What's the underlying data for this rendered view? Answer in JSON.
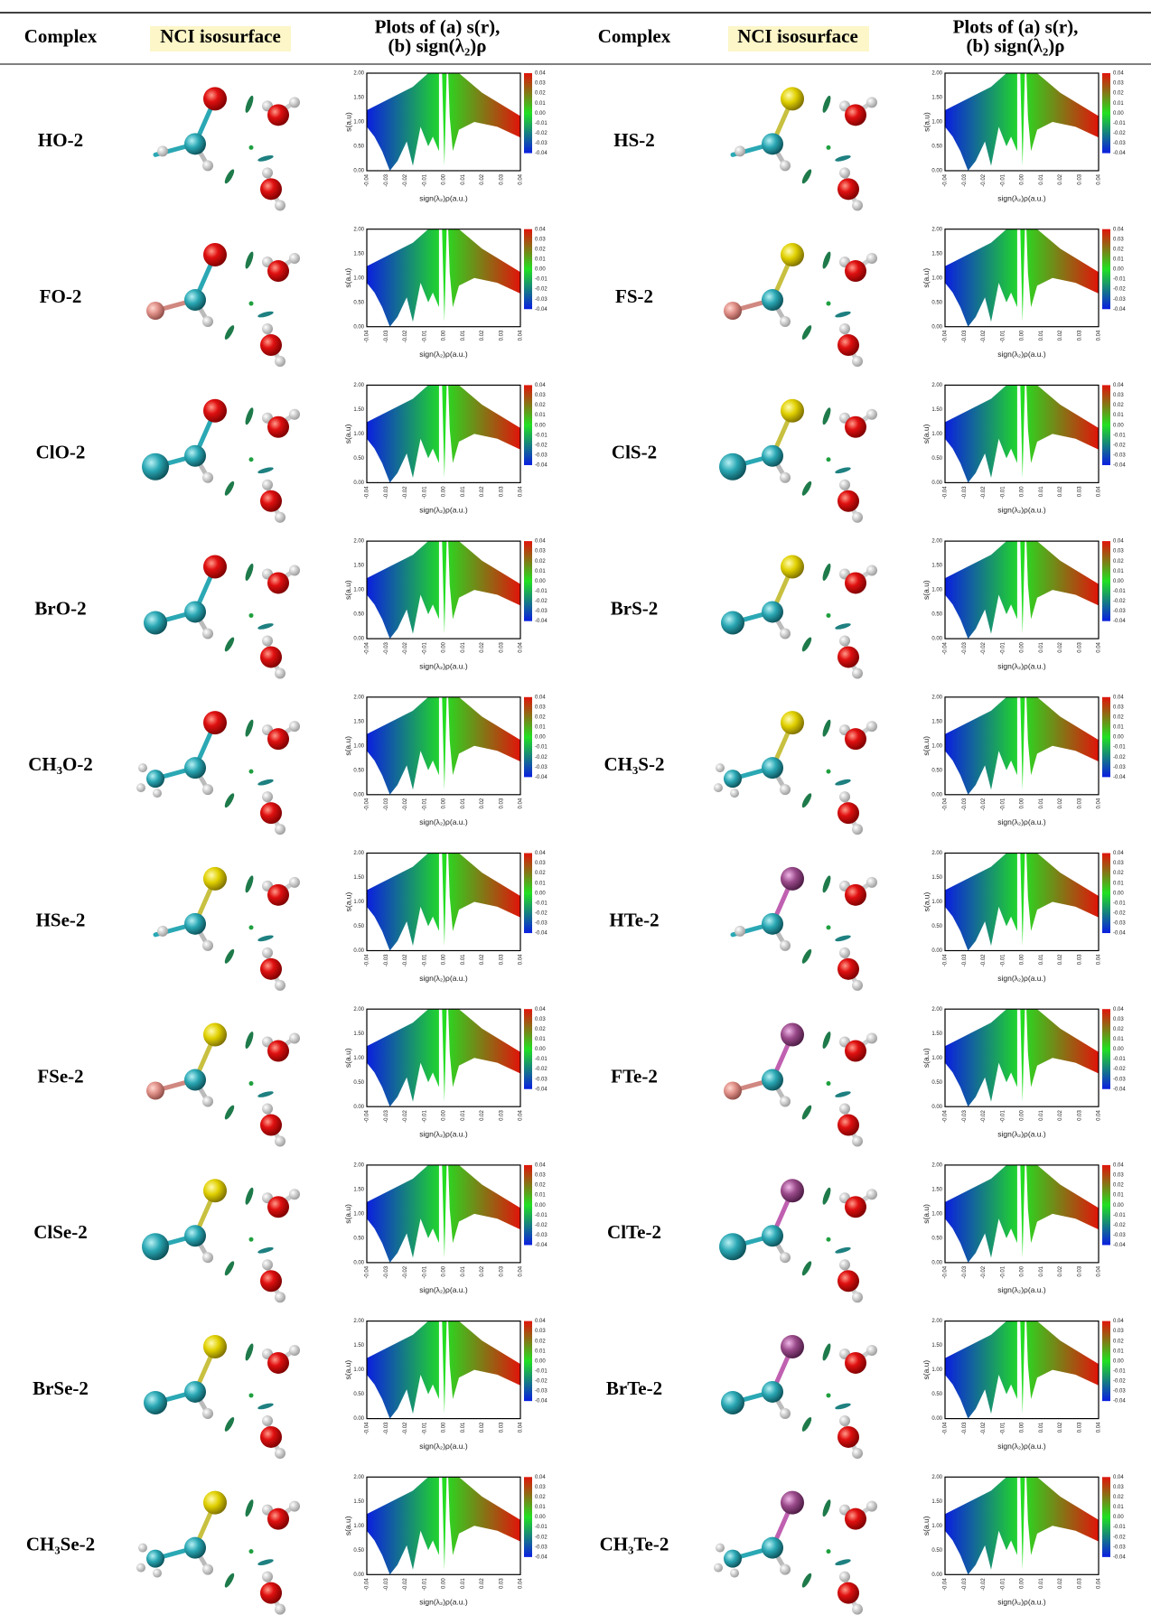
{
  "table": {
    "header": [
      [
        "Complex"
      ],
      [
        "NCI isosurface"
      ],
      [
        "Plots of (a) s(r),",
        "(b) sign(λ₂)ρ"
      ],
      [
        "Complex"
      ],
      [
        "NCI isosurface"
      ],
      [
        "Plots of (a) s(r),",
        "(b) sign(λ₂)ρ"
      ]
    ],
    "rows": [
      [
        "HO-2",
        "HS-2"
      ],
      [
        "FO-2",
        "FS-2"
      ],
      [
        "ClO-2",
        "ClS-2"
      ],
      [
        "BrO-2",
        "BrS-2"
      ],
      [
        "CH₃O-2",
        "CH₃S-2"
      ],
      [
        "HSe-2",
        "HTe-2"
      ],
      [
        "FSe-2",
        "FTe-2"
      ],
      [
        "ClSe-2",
        "ClTe-2"
      ],
      [
        "BrSe-2",
        "BrTe-2"
      ],
      [
        "CH₃Se-2",
        "CH₃Te-2"
      ]
    ]
  },
  "plot": {
    "y_label": "s(a.u)",
    "x_label": "sign(λ₂)ρ(a.u.)",
    "yticks": [
      "0.00",
      "0.50",
      "1.00",
      "1.50",
      "2.00"
    ],
    "xticks": [
      "-0.04",
      "-0.03",
      "-0.02",
      "-0.01",
      "0.00",
      "0.01",
      "0.02",
      "0.03",
      "0.04"
    ],
    "colorbar_ticks": [
      "0.04",
      "0.03",
      "0.02",
      "0.01",
      "0.00",
      "-0.01",
      "-0.02",
      "-0.03",
      "-0.04"
    ]
  }
}
